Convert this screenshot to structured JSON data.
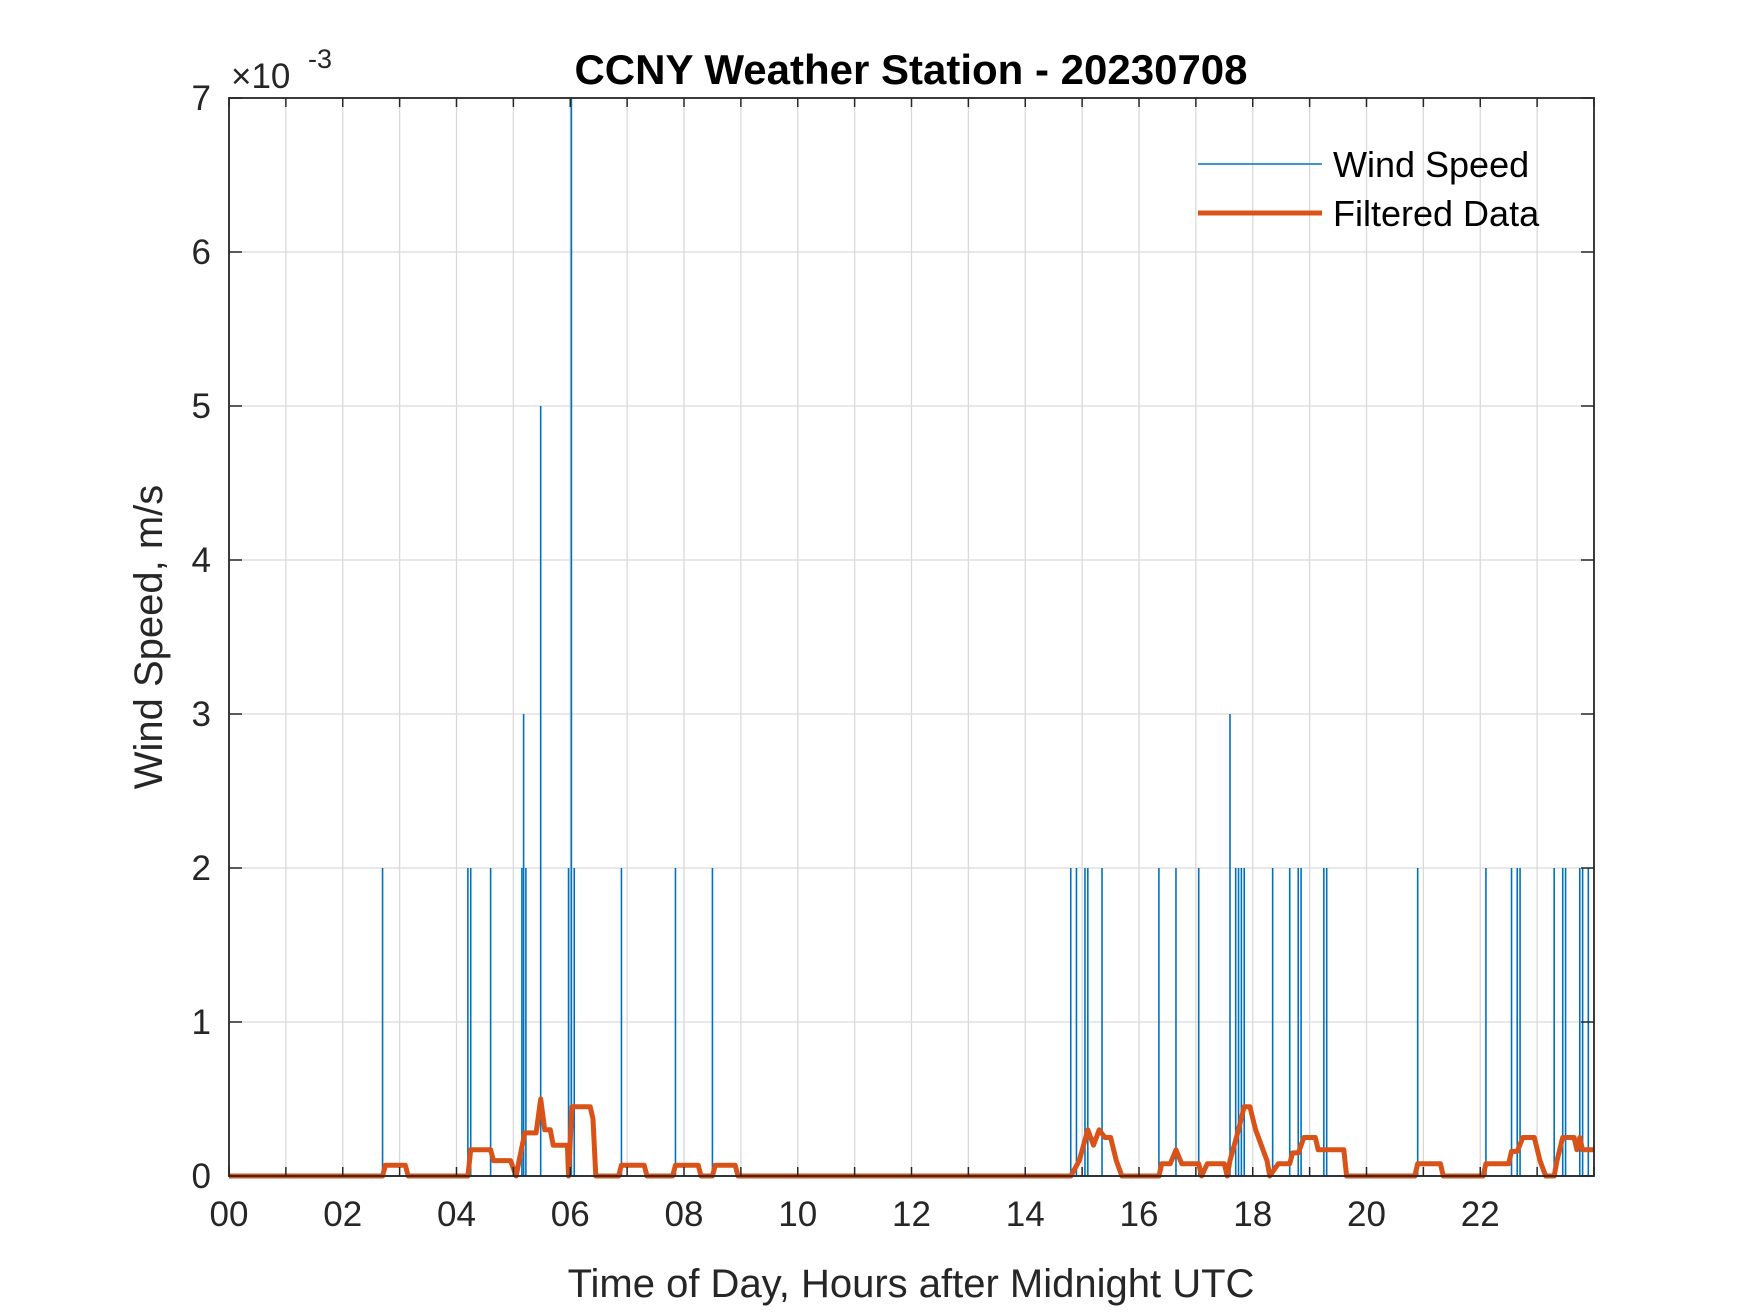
{
  "chart_data": {
    "type": "line",
    "title": "CCNY Weather Station - 20230708",
    "xlabel": "Time of Day, Hours after Midnight UTC",
    "ylabel": "Wind Speed, m/s",
    "y_exponent_label": {
      "base": "×10",
      "exponent": "-3"
    },
    "xlim": [
      0,
      24
    ],
    "ylim": [
      0,
      0.007
    ],
    "x_ticks": [
      0,
      2,
      4,
      6,
      8,
      10,
      12,
      14,
      16,
      18,
      20,
      22
    ],
    "x_tick_labels": [
      "00",
      "02",
      "04",
      "06",
      "08",
      "10",
      "12",
      "14",
      "16",
      "18",
      "20",
      "22"
    ],
    "y_ticks": [
      0,
      0.001,
      0.002,
      0.003,
      0.004,
      0.005,
      0.006,
      0.007
    ],
    "y_tick_labels": [
      "0",
      "1",
      "2",
      "3",
      "4",
      "5",
      "6",
      "7"
    ],
    "grid": true,
    "legend_position": "top-right",
    "colors": {
      "wind_speed": "#0072BD",
      "filtered": "#D95319"
    },
    "series": [
      {
        "name": "Wind Speed",
        "style": "spikes",
        "color": "#0072BD",
        "points": [
          [
            2.7,
            0.002
          ],
          [
            4.2,
            0.002
          ],
          [
            4.25,
            0.002
          ],
          [
            4.6,
            0.002
          ],
          [
            5.15,
            0.002
          ],
          [
            5.18,
            0.003
          ],
          [
            5.22,
            0.002
          ],
          [
            5.48,
            0.005
          ],
          [
            5.97,
            0.002
          ],
          [
            6.02,
            0.007
          ],
          [
            6.07,
            0.002
          ],
          [
            6.9,
            0.002
          ],
          [
            7.85,
            0.002
          ],
          [
            8.5,
            0.002
          ],
          [
            14.8,
            0.002
          ],
          [
            14.9,
            0.002
          ],
          [
            15.05,
            0.002
          ],
          [
            15.1,
            0.002
          ],
          [
            15.35,
            0.002
          ],
          [
            16.35,
            0.002
          ],
          [
            16.65,
            0.002
          ],
          [
            17.05,
            0.002
          ],
          [
            17.6,
            0.003
          ],
          [
            17.7,
            0.002
          ],
          [
            17.75,
            0.002
          ],
          [
            17.8,
            0.002
          ],
          [
            17.85,
            0.002
          ],
          [
            18.35,
            0.002
          ],
          [
            18.65,
            0.002
          ],
          [
            18.8,
            0.002
          ],
          [
            18.85,
            0.002
          ],
          [
            19.25,
            0.002
          ],
          [
            19.3,
            0.002
          ],
          [
            20.9,
            0.002
          ],
          [
            22.1,
            0.002
          ],
          [
            22.55,
            0.002
          ],
          [
            22.65,
            0.002
          ],
          [
            22.7,
            0.002
          ],
          [
            23.3,
            0.002
          ],
          [
            23.45,
            0.002
          ],
          [
            23.5,
            0.002
          ],
          [
            23.75,
            0.002
          ],
          [
            23.8,
            0.002
          ],
          [
            23.9,
            0.002
          ]
        ]
      },
      {
        "name": "Filtered Data",
        "style": "line",
        "color": "#D95319",
        "points": [
          [
            0,
            0
          ],
          [
            2.7,
            0
          ],
          [
            2.75,
            7e-05
          ],
          [
            3.1,
            7e-05
          ],
          [
            3.15,
            0
          ],
          [
            4.2,
            0
          ],
          [
            4.25,
            0.00017
          ],
          [
            4.6,
            0.00017
          ],
          [
            4.65,
            0.0001
          ],
          [
            4.95,
            0.0001
          ],
          [
            5.05,
            0
          ],
          [
            5.1,
            0.0001
          ],
          [
            5.2,
            0.00028
          ],
          [
            5.4,
            0.00028
          ],
          [
            5.48,
            0.0005
          ],
          [
            5.55,
            0.0003
          ],
          [
            5.65,
            0.0003
          ],
          [
            5.7,
            0.0002
          ],
          [
            5.95,
            0.0002
          ],
          [
            5.97,
            0
          ],
          [
            6.03,
            0.00045
          ],
          [
            6.35,
            0.00045
          ],
          [
            6.4,
            0.00037
          ],
          [
            6.45,
            0
          ],
          [
            6.85,
            0
          ],
          [
            6.9,
            7e-05
          ],
          [
            7.3,
            7e-05
          ],
          [
            7.35,
            0
          ],
          [
            7.8,
            0
          ],
          [
            7.85,
            7e-05
          ],
          [
            8.25,
            7e-05
          ],
          [
            8.3,
            0
          ],
          [
            8.5,
            0
          ],
          [
            8.55,
            7e-05
          ],
          [
            8.9,
            7e-05
          ],
          [
            8.95,
            0
          ],
          [
            14.8,
            0
          ],
          [
            14.95,
            0.0001
          ],
          [
            15.1,
            0.0003
          ],
          [
            15.2,
            0.0002
          ],
          [
            15.3,
            0.0003
          ],
          [
            15.4,
            0.00025
          ],
          [
            15.5,
            0.00025
          ],
          [
            15.6,
            0.0001
          ],
          [
            15.7,
            0
          ],
          [
            16.35,
            0
          ],
          [
            16.4,
            8e-05
          ],
          [
            16.55,
            8e-05
          ],
          [
            16.65,
            0.00017
          ],
          [
            16.75,
            8e-05
          ],
          [
            17.05,
            8e-05
          ],
          [
            17.1,
            0
          ],
          [
            17.2,
            8e-05
          ],
          [
            17.5,
            8e-05
          ],
          [
            17.55,
            0
          ],
          [
            17.6,
            0.0001
          ],
          [
            17.75,
            0.0003
          ],
          [
            17.85,
            0.00045
          ],
          [
            17.95,
            0.00045
          ],
          [
            18.05,
            0.0003
          ],
          [
            18.15,
            0.0002
          ],
          [
            18.25,
            0.0001
          ],
          [
            18.3,
            0
          ],
          [
            18.45,
            8e-05
          ],
          [
            18.65,
            8e-05
          ],
          [
            18.7,
            0.00015
          ],
          [
            18.8,
            0.00015
          ],
          [
            18.9,
            0.00025
          ],
          [
            19.1,
            0.00025
          ],
          [
            19.15,
            0.00017
          ],
          [
            19.6,
            0.00017
          ],
          [
            19.65,
            0
          ],
          [
            20.85,
            0
          ],
          [
            20.9,
            8e-05
          ],
          [
            21.3,
            8e-05
          ],
          [
            21.35,
            0
          ],
          [
            22.05,
            0
          ],
          [
            22.1,
            8e-05
          ],
          [
            22.5,
            8e-05
          ],
          [
            22.55,
            0.00016
          ],
          [
            22.65,
            0.00016
          ],
          [
            22.75,
            0.00025
          ],
          [
            22.95,
            0.00025
          ],
          [
            23.05,
            0.0001
          ],
          [
            23.15,
            0
          ],
          [
            23.3,
            0
          ],
          [
            23.35,
            0.0001
          ],
          [
            23.45,
            0.00025
          ],
          [
            23.65,
            0.00025
          ],
          [
            23.7,
            0.00017
          ],
          [
            23.75,
            0.00025
          ],
          [
            23.8,
            0.00017
          ],
          [
            24,
            0.00017
          ]
        ]
      }
    ]
  }
}
